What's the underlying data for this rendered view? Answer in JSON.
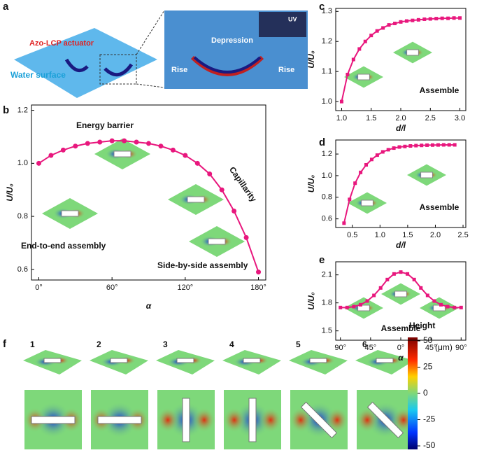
{
  "panel_labels": [
    "a",
    "b",
    "c",
    "d",
    "e",
    "f"
  ],
  "panel_a": {
    "actuator": "Azo-LCP actuator",
    "surface": "Water surface",
    "depression": "Depression",
    "rise_left": "Rise",
    "rise_right": "Rise",
    "uv": "UV"
  },
  "chart_data": [
    {
      "type": "line",
      "marker": "circle",
      "color": "#e8177d",
      "x": [
        0,
        10,
        20,
        30,
        40,
        50,
        60,
        70,
        80,
        90,
        100,
        110,
        120,
        130,
        140,
        150,
        160,
        170,
        180
      ],
      "values": [
        1.0,
        1.03,
        1.05,
        1.065,
        1.075,
        1.08,
        1.085,
        1.085,
        1.08,
        1.075,
        1.065,
        1.05,
        1.03,
        1.0,
        0.96,
        0.9,
        0.82,
        0.72,
        0.59
      ],
      "xlim": [
        -6,
        186
      ],
      "ylim": [
        0.56,
        1.22
      ],
      "xticks": [
        {
          "value": 0,
          "label": "0°"
        },
        {
          "value": 60,
          "label": "60°"
        },
        {
          "value": 120,
          "label": "120°"
        },
        {
          "value": 180,
          "label": "180°"
        }
      ],
      "yticks": [
        0.6,
        0.8,
        {
          "value": 1.0,
          "label": "1.0"
        },
        1.2
      ],
      "x_label": "α",
      "y_label": "U/U₀",
      "annotations": [
        "Energy barrier",
        "Capillarity",
        "End-to-end assembly",
        "Side-by-side assembly"
      ]
    },
    {
      "type": "line",
      "marker": "square",
      "color": "#e8177d",
      "x": [
        1.0,
        1.1,
        1.2,
        1.3,
        1.4,
        1.5,
        1.6,
        1.7,
        1.8,
        1.9,
        2.0,
        2.1,
        2.2,
        2.3,
        2.4,
        2.5,
        2.6,
        2.7,
        2.8,
        2.9,
        3.0
      ],
      "values": [
        1.0,
        1.09,
        1.14,
        1.175,
        1.2,
        1.22,
        1.235,
        1.245,
        1.255,
        1.26,
        1.265,
        1.268,
        1.27,
        1.272,
        1.274,
        1.275,
        1.276,
        1.277,
        1.277,
        1.278,
        1.278
      ],
      "xlim": [
        0.9,
        3.1
      ],
      "ylim": [
        0.97,
        1.31
      ],
      "xticks": [
        {
          "value": 1.0,
          "label": "1.0"
        },
        1.5,
        {
          "value": 2.0,
          "label": "2.0"
        },
        2.5,
        {
          "value": 3.0,
          "label": "3.0"
        }
      ],
      "yticks": [
        {
          "value": 1.0,
          "label": "1.0"
        },
        1.1,
        1.2,
        1.3
      ],
      "x_label": "d/l",
      "y_label": "U/U₀",
      "annotations": [
        "Assemble"
      ]
    },
    {
      "type": "line",
      "marker": "square",
      "color": "#e8177d",
      "x": [
        0.35,
        0.45,
        0.55,
        0.65,
        0.75,
        0.85,
        0.95,
        1.05,
        1.15,
        1.25,
        1.35,
        1.45,
        1.55,
        1.65,
        1.75,
        1.85,
        1.95,
        2.05,
        2.15,
        2.25,
        2.35
      ],
      "values": [
        0.56,
        0.78,
        0.93,
        1.03,
        1.1,
        1.15,
        1.19,
        1.22,
        1.24,
        1.255,
        1.265,
        1.27,
        1.275,
        1.278,
        1.28,
        1.282,
        1.283,
        1.284,
        1.285,
        1.285,
        1.285
      ],
      "xlim": [
        0.2,
        2.55
      ],
      "ylim": [
        0.52,
        1.33
      ],
      "xticks": [
        0.5,
        {
          "value": 1.0,
          "label": "1.0"
        },
        1.5,
        {
          "value": 2.0,
          "label": "2.0"
        },
        2.5
      ],
      "yticks": [
        0.6,
        0.8,
        {
          "value": 1.0,
          "label": "1.0"
        },
        1.2
      ],
      "x_label": "d/l",
      "y_label": "U/U₀",
      "annotations": [
        "Assemble"
      ]
    },
    {
      "type": "line",
      "marker": "square",
      "color": "#e8177d",
      "x": [
        -90,
        -80,
        -70,
        -60,
        -50,
        -40,
        -30,
        -20,
        -10,
        0,
        10,
        20,
        30,
        40,
        50,
        60,
        70,
        80,
        90
      ],
      "values": [
        1.75,
        1.75,
        1.76,
        1.78,
        1.82,
        1.88,
        1.96,
        2.05,
        2.11,
        2.13,
        2.11,
        2.05,
        1.96,
        1.88,
        1.82,
        1.78,
        1.76,
        1.75,
        1.75
      ],
      "xlim": [
        -97,
        97
      ],
      "ylim": [
        1.4,
        2.24
      ],
      "xticks": [
        {
          "value": -90,
          "label": "90°"
        },
        {
          "value": -45,
          "label": "45°"
        },
        {
          "value": 0,
          "label": "0°"
        },
        {
          "value": 45,
          "label": "45°"
        },
        {
          "value": 90,
          "label": "90°"
        }
      ],
      "yticks": [
        1.5,
        1.8,
        2.1
      ],
      "x_label": "α",
      "y_label": "U/U₀",
      "annotations": [
        "Assemble"
      ]
    }
  ],
  "panel_f": {
    "steps": [
      "1",
      "2",
      "3",
      "4",
      "5",
      "6"
    ],
    "colorbar": {
      "title": "Height",
      "unit": "(μm)",
      "ticks": [
        50,
        25,
        0,
        -25,
        -50
      ]
    }
  }
}
